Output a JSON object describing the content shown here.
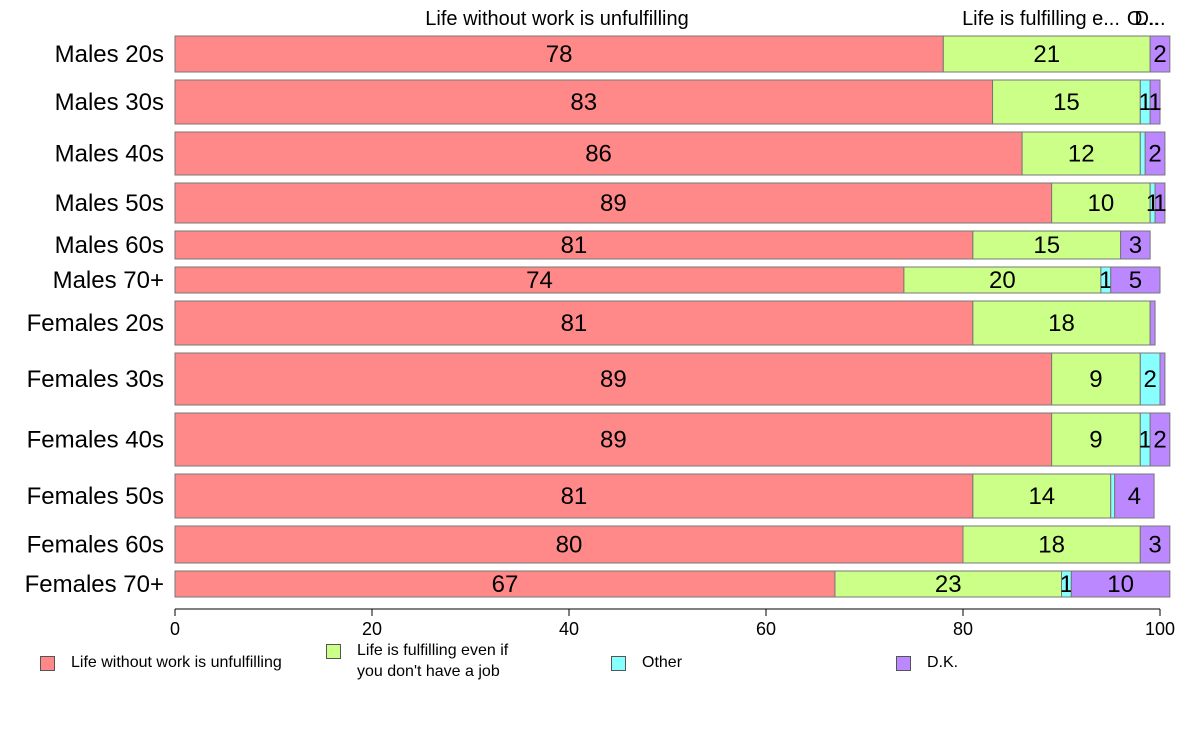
{
  "chart_data": {
    "type": "bar",
    "orientation": "horizontal",
    "stacked": true,
    "percent_scale": true,
    "categories": [
      "Males 20s",
      "Males 30s",
      "Males 40s",
      "Males 50s",
      "Males 60s",
      "Males 70+",
      "Females 20s",
      "Females 30s",
      "Females 40s",
      "Females 50s",
      "Females 60s",
      "Females 70+"
    ],
    "bar_widths": [
      36,
      44,
      43,
      40,
      28,
      26,
      44,
      52,
      53,
      44,
      37,
      26
    ],
    "series": [
      {
        "name": "Life without work is unfulfilling",
        "color": "#ff8888",
        "values": [
          78,
          83,
          86,
          89,
          81,
          74,
          81,
          89,
          89,
          81,
          80,
          67
        ],
        "labels": [
          "78",
          "83",
          "86",
          "89",
          "81",
          "74",
          "81",
          "89",
          "89",
          "81",
          "80",
          "67"
        ]
      },
      {
        "name": "Life is fulfilling even if you don't have a job",
        "color": "#ccff88",
        "values": [
          21,
          15,
          12,
          10,
          15,
          20,
          18,
          9,
          9,
          14,
          18,
          23
        ],
        "labels": [
          "21",
          "15",
          "12",
          "10",
          "15",
          "20",
          "18",
          "9",
          "9",
          "14",
          "18",
          "23"
        ]
      },
      {
        "name": "Other",
        "color": "#88ffff",
        "values": [
          0,
          1,
          0.5,
          0.5,
          0,
          1,
          0,
          2,
          1,
          0.4,
          0,
          1
        ],
        "labels": [
          "",
          "1",
          "",
          "1",
          "",
          "1",
          "",
          "2",
          "1",
          "",
          "",
          "1"
        ]
      },
      {
        "name": "D.K.",
        "color": "#bb88ff",
        "values": [
          2,
          1,
          2,
          1,
          3,
          5,
          0.5,
          0.5,
          2,
          4,
          3,
          10
        ],
        "labels": [
          "2",
          "1",
          "2",
          "1",
          "3",
          "5",
          "",
          "",
          "2",
          "4",
          "3",
          "10"
        ]
      }
    ],
    "top_labels": [
      "Life without work is unfulfilling",
      "Life is fulfilling e...",
      "O...",
      "D..."
    ],
    "xlim": [
      0,
      100
    ],
    "xticks": [
      "0",
      "20",
      "40",
      "60",
      "80",
      "100"
    ],
    "xlabel": "",
    "ylabel": "",
    "grid": false,
    "legend_position": "bottom"
  },
  "legend": [
    {
      "label": "Life without work is unfulfilling",
      "color": "#ff8888"
    },
    {
      "label": "Life is fulfilling even if\nyou don't have a job",
      "color": "#ccff88"
    },
    {
      "label": "Other",
      "color": "#88ffff"
    },
    {
      "label": "D.K.",
      "color": "#bb88ff"
    }
  ]
}
